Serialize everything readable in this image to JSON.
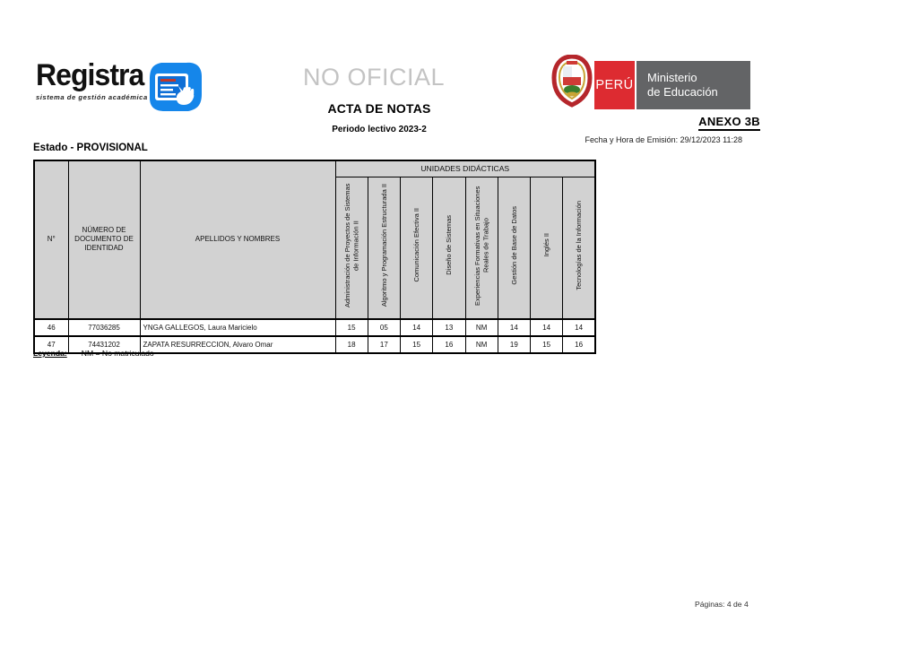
{
  "branding": {
    "logo_name": "Registra",
    "logo_tagline": "sistema de gestión académica",
    "gov_country": "PERÚ",
    "gov_ministry_line1": "Ministerio",
    "gov_ministry_line2": "de Educación",
    "colors": {
      "logo_blue": "#1586ea",
      "peru_red": "#dd2b31",
      "ministry_gray": "#636466",
      "header_gray": "#d2d2d2",
      "watermark_gray": "#c3c3c3"
    }
  },
  "header": {
    "watermark": "NO OFICIAL",
    "title": "ACTA DE NOTAS",
    "period": "Periodo lectivo 2023-2",
    "anexo": "ANEXO 3B",
    "emission": "Fecha y Hora de Emisión: 29/12/2023 11:28",
    "estado": "Estado - PROVISIONAL"
  },
  "table": {
    "group_header": "UNIDADES DIDÁCTICAS",
    "fixed_columns": {
      "num": "N°",
      "doc": "NÚMERO DE DOCUMENTO DE IDENTIDAD",
      "name": "APELLIDOS Y NOMBRES"
    },
    "unit_columns": [
      "Administración de Proyectos de Sistemas de Información II",
      "Algoritmo y Programación Estructurada II",
      "Comunicación Efectiva II",
      "Diseño de Sistemas",
      "Experiencias Formativas en Situaciones Reales de Trabajo",
      "Gestión de Base de Datos",
      "Inglés II",
      "Tecnologías de la Información"
    ],
    "rows": [
      {
        "n": "46",
        "doc": "77036285",
        "name": "YNGA GALLEGOS, Laura Maricielo",
        "grades": [
          "15",
          "05",
          "14",
          "13",
          "NM",
          "14",
          "14",
          "14"
        ]
      },
      {
        "n": "47",
        "doc": "74431202",
        "name": "ZAPATA RESURRECCION, Alvaro Omar",
        "grades": [
          "18",
          "17",
          "15",
          "16",
          "NM",
          "19",
          "15",
          "16"
        ]
      }
    ]
  },
  "legend": {
    "label": "Leyenda:",
    "text": "NM = No matriculado"
  },
  "footer": {
    "pages": "Páginas: 4 de 4"
  }
}
